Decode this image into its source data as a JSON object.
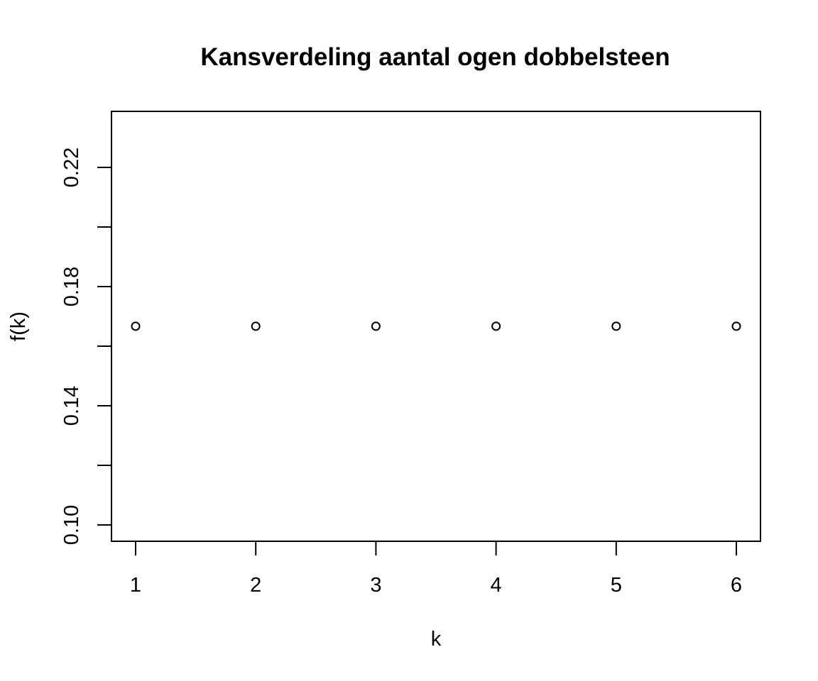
{
  "chart_data": {
    "type": "scatter",
    "title": "Kansverdeling aantal ogen dobbelsteen",
    "xlabel": "k",
    "ylabel": "f(k)",
    "x": [
      1,
      2,
      3,
      4,
      5,
      6
    ],
    "y": [
      0.1667,
      0.1667,
      0.1667,
      0.1667,
      0.1667,
      0.1667
    ],
    "xlim": [
      0.8,
      6.2
    ],
    "ylim": [
      0.0945,
      0.2389
    ],
    "x_ticks": [
      1,
      2,
      3,
      4,
      5,
      6
    ],
    "x_tick_labels": [
      "1",
      "2",
      "3",
      "4",
      "5",
      "6"
    ],
    "y_ticks": [
      0.1,
      0.12,
      0.14,
      0.16,
      0.18,
      0.2,
      0.22
    ],
    "y_tick_labels": [
      "0.10",
      "",
      "0.14",
      "",
      "0.18",
      "",
      "0.22"
    ],
    "marker": "open-circle",
    "grid": false,
    "legend": "none",
    "colors": {
      "points": "#000000",
      "axes": "#000000",
      "background": "#ffffff"
    }
  }
}
